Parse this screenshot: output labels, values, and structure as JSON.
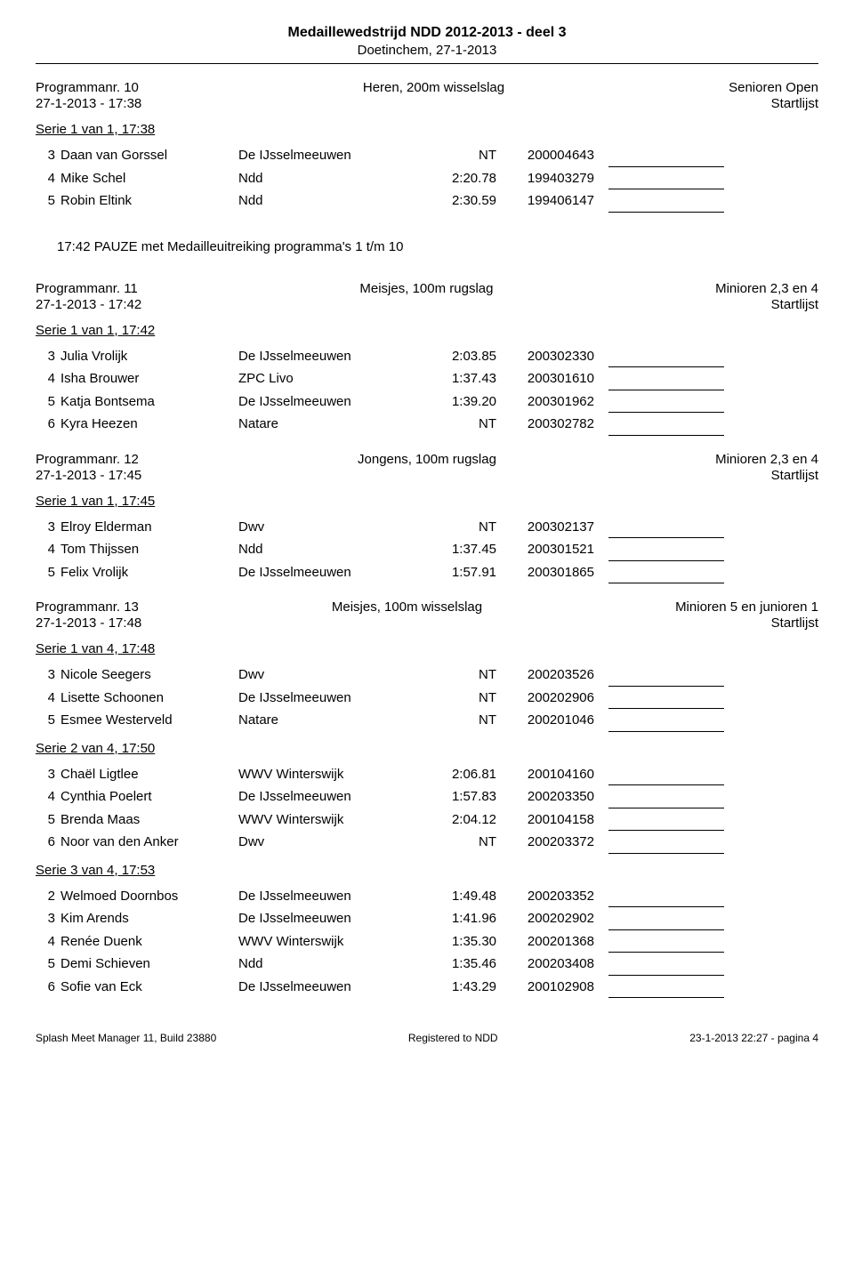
{
  "header": {
    "title": "Medaillewedstrijd NDD 2012-2013 - deel 3",
    "subtitle": "Doetinchem, 27-1-2013"
  },
  "pause": "17:42    PAUZE met Medailleuitreiking programma's 1 t/m 10",
  "programs": [
    {
      "nr": "Programmanr. 10",
      "event": "Heren, 200m wisselslag",
      "cat": "Senioren Open",
      "date": "27-1-2013 - 17:38",
      "right": "Startlijst",
      "series": [
        {
          "title": "Serie 1 van 1, 17:38",
          "rows": [
            {
              "lane": "3",
              "name": "Daan van Gorssel",
              "club": "De IJsselmeeuwen",
              "time": "NT",
              "id": "200004643"
            },
            {
              "lane": "4",
              "name": "Mike Schel",
              "club": "Ndd",
              "time": "2:20.78",
              "id": "199403279"
            },
            {
              "lane": "5",
              "name": "Robin Eltink",
              "club": "Ndd",
              "time": "2:30.59",
              "id": "199406147"
            }
          ]
        }
      ],
      "pause_after": true
    },
    {
      "nr": "Programmanr. 11",
      "event": "Meisjes, 100m rugslag",
      "cat": "Minioren 2,3 en 4",
      "date": "27-1-2013 - 17:42",
      "right": "Startlijst",
      "series": [
        {
          "title": "Serie 1 van 1, 17:42",
          "rows": [
            {
              "lane": "3",
              "name": "Julia Vrolijk",
              "club": "De IJsselmeeuwen",
              "time": "2:03.85",
              "id": "200302330"
            },
            {
              "lane": "4",
              "name": "Isha Brouwer",
              "club": "ZPC Livo",
              "time": "1:37.43",
              "id": "200301610"
            },
            {
              "lane": "5",
              "name": "Katja Bontsema",
              "club": "De IJsselmeeuwen",
              "time": "1:39.20",
              "id": "200301962"
            },
            {
              "lane": "6",
              "name": "Kyra Heezen",
              "club": "Natare",
              "time": "NT",
              "id": "200302782"
            }
          ]
        }
      ]
    },
    {
      "nr": "Programmanr. 12",
      "event": "Jongens, 100m rugslag",
      "cat": "Minioren 2,3 en 4",
      "date": "27-1-2013 - 17:45",
      "right": "Startlijst",
      "series": [
        {
          "title": "Serie 1 van 1, 17:45",
          "rows": [
            {
              "lane": "3",
              "name": "Elroy Elderman",
              "club": "Dwv",
              "time": "NT",
              "id": "200302137"
            },
            {
              "lane": "4",
              "name": "Tom Thijssen",
              "club": "Ndd",
              "time": "1:37.45",
              "id": "200301521"
            },
            {
              "lane": "5",
              "name": "Felix Vrolijk",
              "club": "De IJsselmeeuwen",
              "time": "1:57.91",
              "id": "200301865"
            }
          ]
        }
      ]
    },
    {
      "nr": "Programmanr. 13",
      "event": "Meisjes, 100m wisselslag",
      "cat": "Minioren 5 en junioren 1",
      "date": "27-1-2013 - 17:48",
      "right": "Startlijst",
      "series": [
        {
          "title": "Serie 1 van 4, 17:48",
          "rows": [
            {
              "lane": "3",
              "name": "Nicole Seegers",
              "club": "Dwv",
              "time": "NT",
              "id": "200203526"
            },
            {
              "lane": "4",
              "name": "Lisette Schoonen",
              "club": "De IJsselmeeuwen",
              "time": "NT",
              "id": "200202906"
            },
            {
              "lane": "5",
              "name": "Esmee Westerveld",
              "club": "Natare",
              "time": "NT",
              "id": "200201046"
            }
          ]
        },
        {
          "title": "Serie 2 van 4, 17:50",
          "rows": [
            {
              "lane": "3",
              "name": "Chaël Ligtlee",
              "club": "WWV Winterswijk",
              "time": "2:06.81",
              "id": "200104160"
            },
            {
              "lane": "4",
              "name": "Cynthia Poelert",
              "club": "De IJsselmeeuwen",
              "time": "1:57.83",
              "id": "200203350"
            },
            {
              "lane": "5",
              "name": "Brenda Maas",
              "club": "WWV Winterswijk",
              "time": "2:04.12",
              "id": "200104158"
            },
            {
              "lane": "6",
              "name": "Noor van den Anker",
              "club": "Dwv",
              "time": "NT",
              "id": "200203372"
            }
          ]
        },
        {
          "title": "Serie 3 van 4, 17:53",
          "rows": [
            {
              "lane": "2",
              "name": "Welmoed Doornbos",
              "club": "De IJsselmeeuwen",
              "time": "1:49.48",
              "id": "200203352"
            },
            {
              "lane": "3",
              "name": "Kim Arends",
              "club": "De IJsselmeeuwen",
              "time": "1:41.96",
              "id": "200202902"
            },
            {
              "lane": "4",
              "name": "Renée Duenk",
              "club": "WWV Winterswijk",
              "time": "1:35.30",
              "id": "200201368"
            },
            {
              "lane": "5",
              "name": "Demi Schieven",
              "club": "Ndd",
              "time": "1:35.46",
              "id": "200203408"
            },
            {
              "lane": "6",
              "name": "Sofie van Eck",
              "club": "De IJsselmeeuwen",
              "time": "1:43.29",
              "id": "200102908"
            }
          ]
        }
      ]
    }
  ],
  "footer": {
    "left": "Splash Meet Manager 11, Build 23880",
    "center": "Registered to NDD",
    "right": "23-1-2013 22:27 - pagina 4"
  }
}
